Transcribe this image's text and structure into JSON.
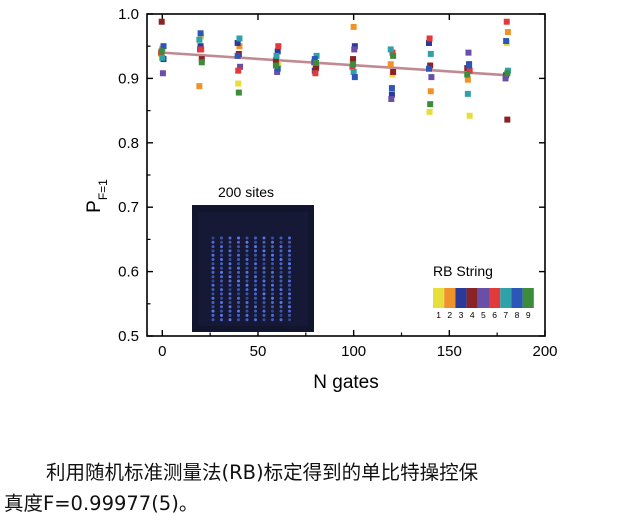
{
  "chart_data": {
    "type": "scatter",
    "xlabel": "N gates",
    "ylabel_main": "P",
    "ylabel_sub": "F=1",
    "xlim": [
      -8,
      200
    ],
    "ylim": [
      0.5,
      1.0
    ],
    "xticks": [
      0,
      50,
      100,
      150,
      200
    ],
    "yticks": [
      0.5,
      0.6,
      0.7,
      0.8,
      0.9,
      1.0
    ],
    "xtick_labels": [
      "0",
      "50",
      "100",
      "150",
      "200"
    ],
    "ytick_labels": [
      "0.5",
      "0.6",
      "0.7",
      "0.8",
      "0.9",
      "1.0"
    ],
    "fit_line": {
      "color": "#c08a92",
      "x": [
        0,
        180
      ],
      "y": [
        0.94,
        0.905
      ]
    },
    "inset_image_label": "200 sites",
    "legend": {
      "title": "RB String",
      "entries": [
        {
          "label": "1",
          "color": "#e8de3a"
        },
        {
          "label": "2",
          "color": "#f0922a"
        },
        {
          "label": "3",
          "color": "#2a3a9a"
        },
        {
          "label": "4",
          "color": "#8a2424"
        },
        {
          "label": "5",
          "color": "#6a4fa8"
        },
        {
          "label": "6",
          "color": "#e23a3a"
        },
        {
          "label": "7",
          "color": "#2fa1a8"
        },
        {
          "label": "8",
          "color": "#2c56b8"
        },
        {
          "label": "9",
          "color": "#3c8c3c"
        }
      ]
    },
    "series": [
      {
        "name": "1",
        "color": "#e8de3a",
        "x": [
          0,
          20,
          40,
          60,
          80,
          100,
          120,
          140,
          160,
          180
        ],
        "y": [
          0.938,
          0.965,
          0.892,
          0.922,
          0.918,
          0.925,
          0.906,
          0.848,
          0.842,
          0.955
        ]
      },
      {
        "name": "2",
        "color": "#f0922a",
        "x": [
          0,
          20,
          40,
          60,
          80,
          100,
          120,
          140,
          160,
          180
        ],
        "y": [
          0.946,
          0.888,
          0.95,
          0.925,
          0.92,
          0.98,
          0.922,
          0.88,
          0.898,
          0.972
        ]
      },
      {
        "name": "3",
        "color": "#2a3a9a",
        "x": [
          0,
          20,
          40,
          60,
          80,
          100,
          120,
          140,
          160,
          180
        ],
        "y": [
          0.93,
          0.95,
          0.955,
          0.942,
          0.912,
          0.95,
          0.875,
          0.955,
          0.922,
          0.905
        ]
      },
      {
        "name": "4",
        "color": "#8a2424",
        "x": [
          0,
          20,
          40,
          60,
          80,
          100,
          120,
          140,
          160,
          180
        ],
        "y": [
          0.988,
          0.93,
          0.938,
          0.928,
          0.916,
          0.93,
          0.91,
          0.92,
          0.916,
          0.836
        ]
      },
      {
        "name": "5",
        "color": "#6a4fa8",
        "x": [
          0,
          20,
          40,
          60,
          80,
          100,
          120,
          140,
          160,
          180
        ],
        "y": [
          0.908,
          0.945,
          0.918,
          0.91,
          0.925,
          0.945,
          0.868,
          0.902,
          0.94,
          0.9
        ]
      },
      {
        "name": "6",
        "color": "#e23a3a",
        "x": [
          0,
          20,
          40,
          60,
          80,
          100,
          120,
          140,
          160,
          180
        ],
        "y": [
          0.94,
          0.945,
          0.912,
          0.95,
          0.908,
          0.918,
          0.94,
          0.962,
          0.912,
          0.988
        ]
      },
      {
        "name": "7",
        "color": "#2fa1a8",
        "x": [
          0,
          20,
          40,
          60,
          80,
          100,
          120,
          140,
          160,
          180
        ],
        "y": [
          0.932,
          0.96,
          0.962,
          0.935,
          0.935,
          0.91,
          0.945,
          0.938,
          0.876,
          0.912
        ]
      },
      {
        "name": "8",
        "color": "#2c56b8",
        "x": [
          0,
          20,
          40,
          60,
          80,
          100,
          120,
          140,
          160,
          180
        ],
        "y": [
          0.95,
          0.97,
          0.935,
          0.915,
          0.93,
          0.902,
          0.885,
          0.915,
          0.92,
          0.958
        ]
      },
      {
        "name": "9",
        "color": "#3c8c3c",
        "x": [
          0,
          20,
          40,
          60,
          80,
          100,
          120,
          140,
          160,
          180
        ],
        "y": [
          0.942,
          0.925,
          0.878,
          0.92,
          0.924,
          0.922,
          0.935,
          0.86,
          0.906,
          0.908
        ]
      }
    ]
  },
  "caption": {
    "line1": "利用随机标准测量法(RB)标定得到的单比特操控保",
    "line2": "真度F=0.99977(5)。"
  }
}
